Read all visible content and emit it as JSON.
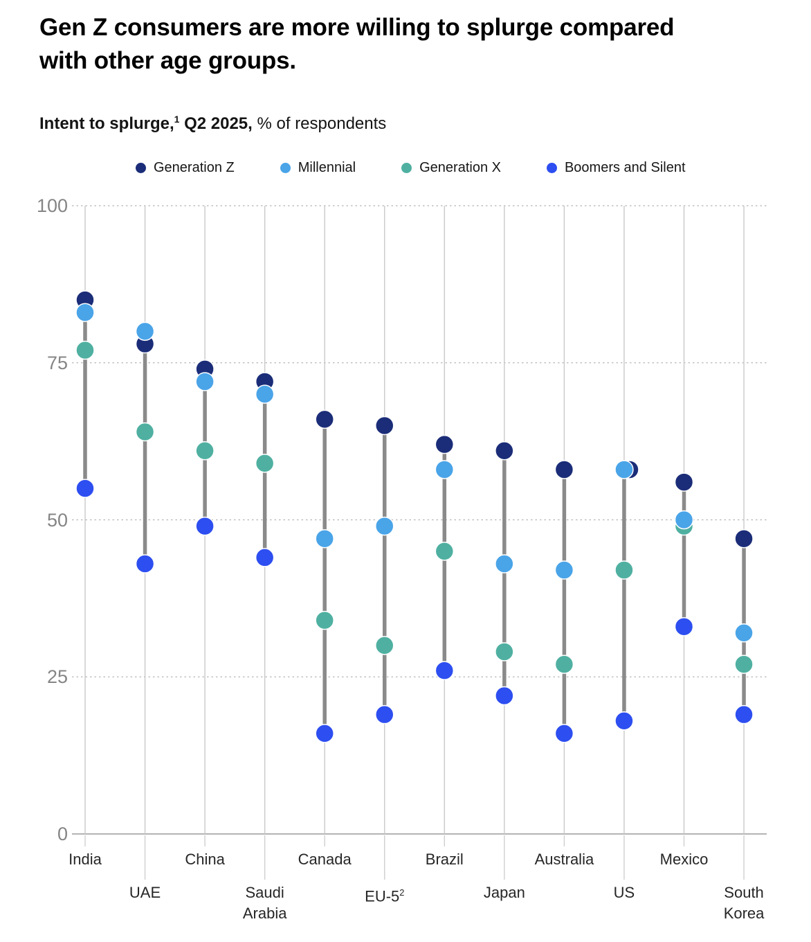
{
  "page": {
    "title_lines": [
      "Gen Z consumers are more willing to splurge compared",
      "with other age groups."
    ],
    "subtitle": {
      "lead_bold": "Intent to splurge,",
      "footnote_sup": "1",
      "period_bold": " Q2 2025,",
      "rest": " % of respondents"
    }
  },
  "chart_data": {
    "type": "scatter",
    "subtype": "dumbbell-dot-plot",
    "title": "Intent to splurge, Q2 2025, % of respondents",
    "categories": [
      {
        "label": "India",
        "row": 1
      },
      {
        "label": "UAE",
        "row": 2
      },
      {
        "label": "China",
        "row": 1
      },
      {
        "label": "Saudi Arabia",
        "row": 2,
        "lines": [
          "Saudi",
          "Arabia"
        ]
      },
      {
        "label": "Canada",
        "row": 1
      },
      {
        "label": "EU-5",
        "row": 2,
        "sup": "2"
      },
      {
        "label": "Brazil",
        "row": 1
      },
      {
        "label": "Japan",
        "row": 2
      },
      {
        "label": "Australia",
        "row": 1
      },
      {
        "label": "US",
        "row": 2
      },
      {
        "label": "Mexico",
        "row": 1
      },
      {
        "label": "South Korea",
        "row": 2,
        "lines": [
          "South",
          "Korea"
        ]
      }
    ],
    "series": [
      {
        "name": "Generation Z",
        "color": "#1b2d78",
        "values": [
          85,
          78,
          74,
          72,
          66,
          65,
          62,
          61,
          58,
          58,
          56,
          47
        ]
      },
      {
        "name": "Millennial",
        "color": "#4aa4e8",
        "values": [
          83,
          80,
          72,
          70,
          47,
          49,
          58,
          43,
          42,
          58,
          50,
          32
        ]
      },
      {
        "name": "Generation X",
        "color": "#4fb0a1",
        "values": [
          77,
          64,
          61,
          59,
          34,
          30,
          45,
          29,
          27,
          42,
          49,
          27
        ]
      },
      {
        "name": "Boomers and Silent",
        "color": "#2d4ef0",
        "values": [
          55,
          43,
          49,
          44,
          16,
          19,
          26,
          22,
          16,
          18,
          33,
          19
        ]
      }
    ],
    "ylim": [
      0,
      100
    ],
    "yticks": [
      0,
      25,
      50,
      75,
      100
    ],
    "grid": "dashed-horizontal",
    "legend_position": "top",
    "connector_color": "#8a8a8a",
    "column_line_color": "#c9c9c9",
    "axis_color": "#9a9a9a",
    "gridline_color": "#b5b5b5"
  }
}
